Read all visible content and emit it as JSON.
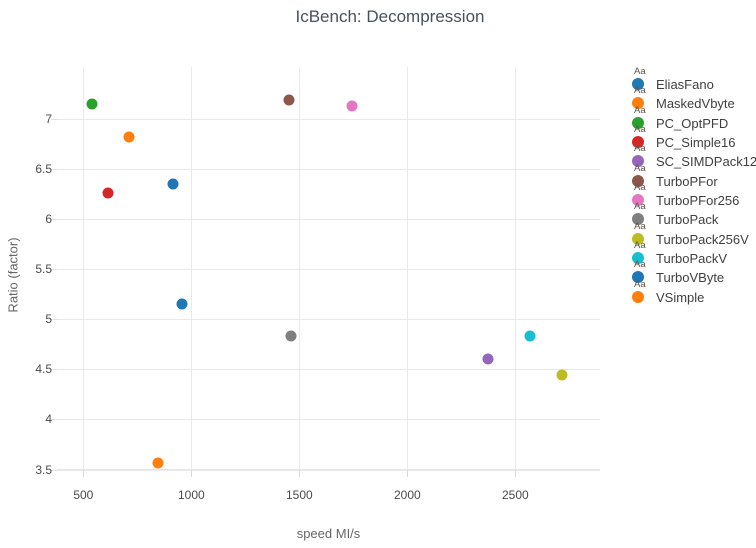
{
  "chart_data": {
    "type": "scatter",
    "title": "IcBench: Decompression",
    "xlabel": "speed MI/s",
    "ylabel": "Ratio (factor)",
    "xlim": [
      378,
      2892
    ],
    "ylim": [
      3.496,
      7.516
    ],
    "x_ticks": [
      500,
      1000,
      1500,
      2000,
      2500
    ],
    "y_ticks": [
      3.5,
      4,
      4.5,
      5,
      5.5,
      6,
      6.5,
      7
    ],
    "grid": true,
    "legend_position": "right",
    "legend_glyph_text": "Aa",
    "series": [
      {
        "name": "EliasFano",
        "color": "#1f77b4",
        "x": 915,
        "y": 6.35
      },
      {
        "name": "MaskedVbyte",
        "color": "#ff7f0e",
        "x": 712,
        "y": 6.82
      },
      {
        "name": "PC_OptPFD",
        "color": "#2ca02c",
        "x": 540,
        "y": 7.15
      },
      {
        "name": "PC_Simple16",
        "color": "#d62728",
        "x": 613,
        "y": 6.26
      },
      {
        "name": "SC_SIMDPack128",
        "color": "#9467bd",
        "x": 2372,
        "y": 4.6
      },
      {
        "name": "TurboPFor",
        "color": "#8c564b",
        "x": 1450,
        "y": 7.19
      },
      {
        "name": "TurboPFor256",
        "color": "#e377c2",
        "x": 1745,
        "y": 7.13
      },
      {
        "name": "TurboPack",
        "color": "#7f7f7f",
        "x": 1463,
        "y": 4.83
      },
      {
        "name": "TurboPack256V",
        "color": "#bcbd22",
        "x": 2715,
        "y": 4.44
      },
      {
        "name": "TurboPackV",
        "color": "#17becf",
        "x": 2570,
        "y": 4.83
      },
      {
        "name": "TurboVByte",
        "color": "#1f77b4",
        "x": 958,
        "y": 5.15
      },
      {
        "name": "VSimple",
        "color": "#ff7f0e",
        "x": 845,
        "y": 3.57
      }
    ]
  }
}
